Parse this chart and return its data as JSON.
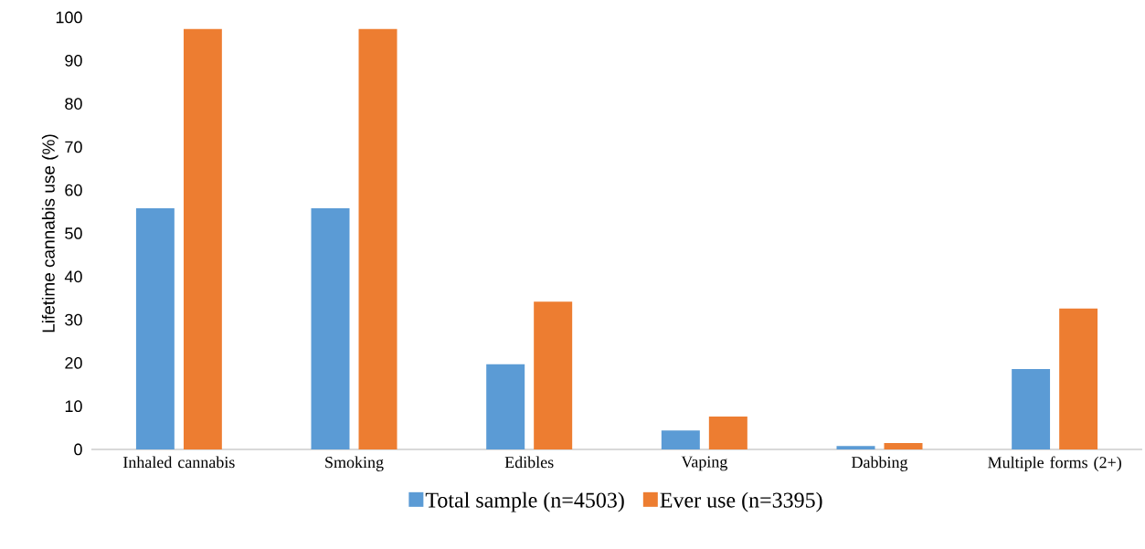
{
  "chart_data": {
    "type": "bar",
    "ylabel": "Lifetime cannabis use (%)",
    "categories": [
      "Inhaled cannabis",
      "Smoking",
      "Edibles",
      "Vaping",
      "Dabbing",
      "Multiple forms (2+)"
    ],
    "series": [
      {
        "name": "Total sample (n=4503)",
        "color": "#5b9bd5",
        "values": [
          55.8,
          55.8,
          19.7,
          4.4,
          0.8,
          18.6
        ]
      },
      {
        "name": "Ever use (n=3395)",
        "color": "#ed7d31",
        "values": [
          97.3,
          97.3,
          34.2,
          7.6,
          1.5,
          32.6
        ]
      }
    ],
    "ylim": [
      0,
      100
    ],
    "yticks": [
      0,
      10,
      20,
      30,
      40,
      50,
      60,
      70,
      80,
      90,
      100
    ],
    "grid": false,
    "legend": "bottom"
  }
}
